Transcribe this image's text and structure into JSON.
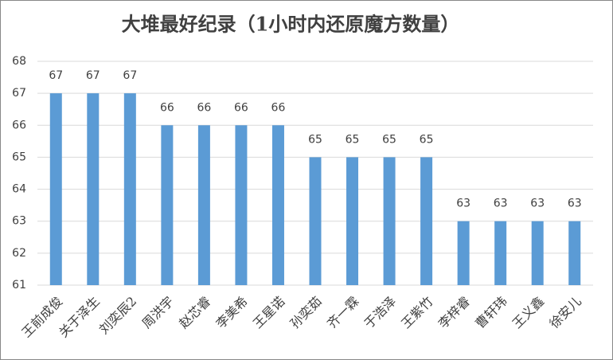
{
  "chart_data": {
    "type": "bar",
    "title": "大堆最好纪录（1小时内还原魔方数量）",
    "categories": [
      "王前成俊",
      "关于泽生",
      "刘奕辰2",
      "周洪宇",
      "赵芯睿",
      "李美希",
      "王星诺",
      "孙奕茹",
      "齐一霖",
      "于浩泽",
      "王紫竹",
      "李梓睿",
      "曹轩玮",
      "王义鑫",
      "徐安儿"
    ],
    "values": [
      67,
      67,
      67,
      66,
      66,
      66,
      66,
      65,
      65,
      65,
      65,
      63,
      63,
      63,
      63
    ],
    "color": "#5b9bd5",
    "ylim": [
      61,
      68
    ],
    "yticks": [
      61,
      62,
      63,
      64,
      65,
      66,
      67,
      68
    ],
    "grid": true
  }
}
